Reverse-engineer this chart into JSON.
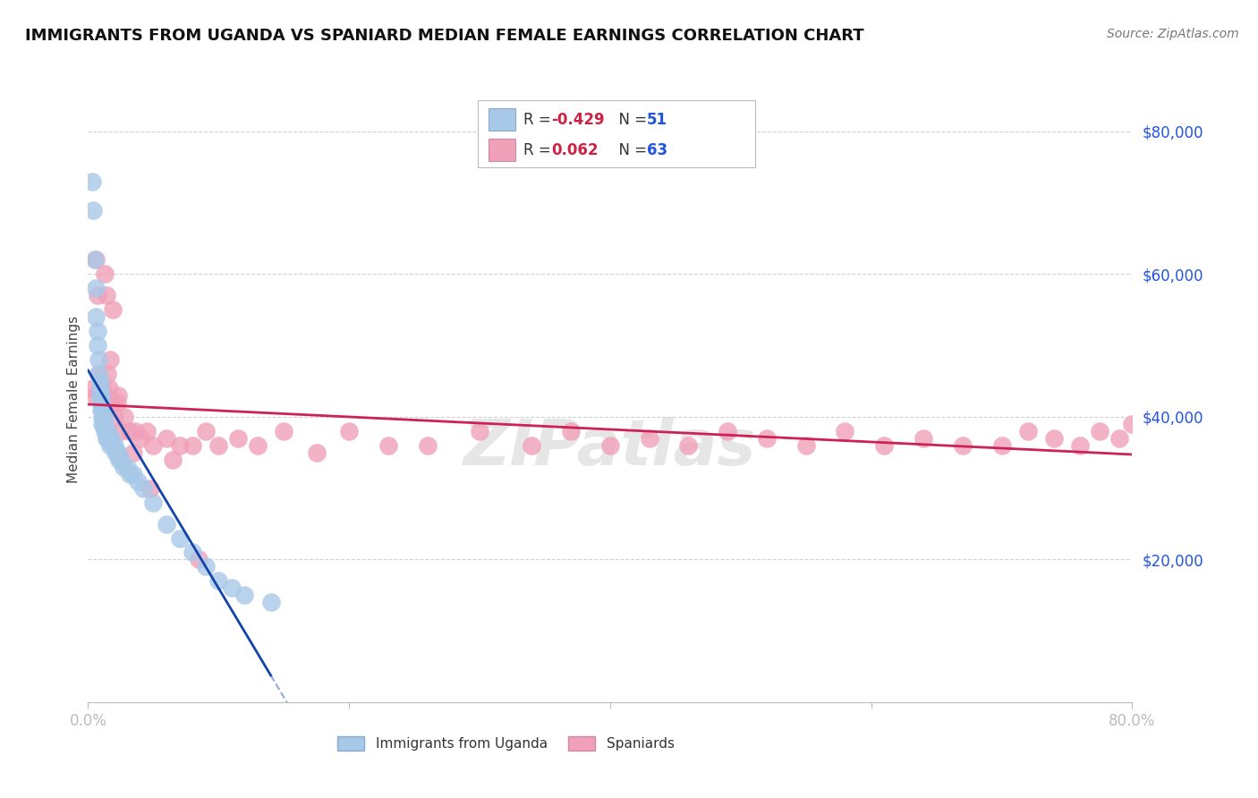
{
  "title": "IMMIGRANTS FROM UGANDA VS SPANIARD MEDIAN FEMALE EARNINGS CORRELATION CHART",
  "source": "Source: ZipAtlas.com",
  "ylabel": "Median Female Earnings",
  "xlim": [
    0.0,
    0.8
  ],
  "ylim": [
    0,
    85000
  ],
  "yticks": [
    0,
    20000,
    40000,
    60000,
    80000
  ],
  "xtick_positions": [
    0.0,
    0.2,
    0.4,
    0.6,
    0.8
  ],
  "legend_r_uganda": "-0.429",
  "legend_n_uganda": "51",
  "legend_r_spaniard": "0.062",
  "legend_n_spaniard": "63",
  "color_uganda": "#a8c8e8",
  "color_spaniard": "#f0a0b8",
  "line_color_uganda": "#1144aa",
  "line_color_spaniard": "#cc2255",
  "watermark": "ZIPatlas",
  "background_color": "#ffffff",
  "grid_color": "#cccccc",
  "uganda_x": [
    0.003,
    0.004,
    0.005,
    0.006,
    0.006,
    0.007,
    0.007,
    0.008,
    0.008,
    0.009,
    0.009,
    0.009,
    0.01,
    0.01,
    0.01,
    0.011,
    0.011,
    0.011,
    0.012,
    0.012,
    0.013,
    0.013,
    0.014,
    0.014,
    0.015,
    0.015,
    0.016,
    0.017,
    0.018,
    0.019,
    0.02,
    0.021,
    0.022,
    0.023,
    0.024,
    0.025,
    0.027,
    0.03,
    0.032,
    0.035,
    0.038,
    0.042,
    0.05,
    0.06,
    0.07,
    0.08,
    0.09,
    0.1,
    0.11,
    0.12,
    0.14
  ],
  "uganda_y": [
    73000,
    69000,
    62000,
    58000,
    54000,
    52000,
    50000,
    48000,
    46000,
    45000,
    44000,
    43000,
    43000,
    42000,
    41000,
    41000,
    40000,
    39000,
    40000,
    39000,
    39000,
    38000,
    38000,
    37000,
    38000,
    37000,
    37000,
    36000,
    37000,
    36000,
    36000,
    35000,
    35000,
    35000,
    34000,
    34000,
    33000,
    33000,
    32000,
    32000,
    31000,
    30000,
    28000,
    25000,
    23000,
    21000,
    19000,
    17000,
    16000,
    15000,
    14000
  ],
  "spaniard_x": [
    0.004,
    0.005,
    0.006,
    0.007,
    0.008,
    0.009,
    0.01,
    0.011,
    0.012,
    0.013,
    0.015,
    0.016,
    0.017,
    0.018,
    0.02,
    0.022,
    0.025,
    0.028,
    0.032,
    0.036,
    0.04,
    0.045,
    0.05,
    0.06,
    0.07,
    0.08,
    0.09,
    0.1,
    0.115,
    0.13,
    0.15,
    0.175,
    0.2,
    0.23,
    0.26,
    0.3,
    0.34,
    0.37,
    0.4,
    0.43,
    0.46,
    0.49,
    0.52,
    0.55,
    0.58,
    0.61,
    0.64,
    0.67,
    0.7,
    0.72,
    0.74,
    0.76,
    0.775,
    0.79,
    0.8,
    0.013,
    0.014,
    0.019,
    0.023,
    0.035,
    0.048,
    0.065,
    0.085
  ],
  "spaniard_y": [
    44000,
    43000,
    62000,
    57000,
    46000,
    44000,
    43000,
    44000,
    42000,
    42000,
    46000,
    44000,
    48000,
    42000,
    40000,
    42000,
    38000,
    40000,
    38000,
    38000,
    37000,
    38000,
    36000,
    37000,
    36000,
    36000,
    38000,
    36000,
    37000,
    36000,
    38000,
    35000,
    38000,
    36000,
    36000,
    38000,
    36000,
    38000,
    36000,
    37000,
    36000,
    38000,
    37000,
    36000,
    38000,
    36000,
    37000,
    36000,
    36000,
    38000,
    37000,
    36000,
    38000,
    37000,
    39000,
    60000,
    57000,
    55000,
    43000,
    35000,
    30000,
    34000,
    20000
  ]
}
